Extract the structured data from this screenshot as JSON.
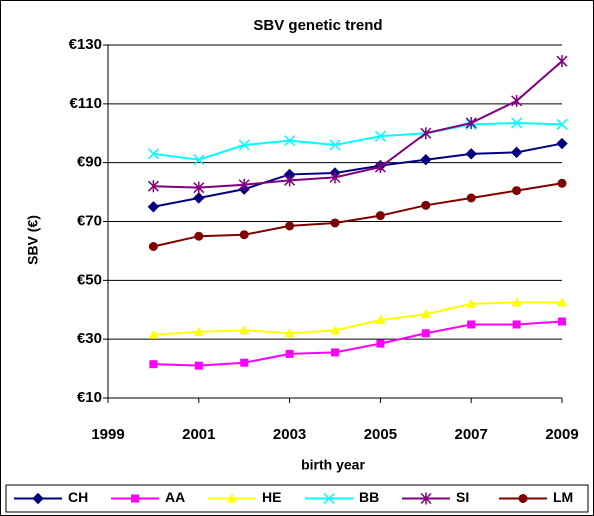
{
  "chart_data": {
    "type": "line",
    "title": "SBV genetic trend",
    "x_label": "birth year",
    "y_label": "SBV (€)",
    "x": [
      2000,
      2001,
      2002,
      2003,
      2004,
      2005,
      2006,
      2007,
      2008,
      2009
    ],
    "xlim": [
      1999,
      2009
    ],
    "xticks": [
      1999,
      2001,
      2003,
      2005,
      2007,
      2009
    ],
    "ylim": [
      10,
      130
    ],
    "yticks": [
      {
        "value": 10,
        "label": "€10"
      },
      {
        "value": 30,
        "label": "€30"
      },
      {
        "value": 50,
        "label": "€50"
      },
      {
        "value": 70,
        "label": "€70"
      },
      {
        "value": 90,
        "label": "€90"
      },
      {
        "value": 110,
        "label": "€110"
      },
      {
        "value": 130,
        "label": "€130"
      }
    ],
    "grid": true,
    "legend": "bottom",
    "series": [
      {
        "name": "CH",
        "color": "#000080",
        "marker": "diamond",
        "values": [
          75,
          78,
          81,
          86,
          86.5,
          89,
          91,
          93,
          93.5,
          96.5
        ]
      },
      {
        "name": "AA",
        "color": "#ff00ff",
        "marker": "square",
        "values": [
          21.5,
          21,
          22,
          25,
          25.5,
          28.5,
          32,
          35,
          35,
          36
        ]
      },
      {
        "name": "HE",
        "color": "#ffff00",
        "marker": "triangle",
        "values": [
          31.5,
          32.5,
          33,
          32,
          33,
          36.5,
          38.5,
          42,
          42.5,
          42.5
        ]
      },
      {
        "name": "BB",
        "color": "#00ffff",
        "marker": "x",
        "values": [
          93,
          91,
          96,
          97.5,
          96,
          99,
          100,
          103,
          103.5,
          103
        ]
      },
      {
        "name": "SI",
        "color": "#800080",
        "marker": "star",
        "values": [
          82,
          81.5,
          82.5,
          84,
          85,
          88.5,
          100,
          103.5,
          111,
          124.5
        ]
      },
      {
        "name": "LM",
        "color": "#800000",
        "marker": "circle",
        "values": [
          61.5,
          65,
          65.5,
          68.5,
          69.5,
          72,
          75.5,
          78,
          80.5,
          83
        ]
      }
    ]
  }
}
